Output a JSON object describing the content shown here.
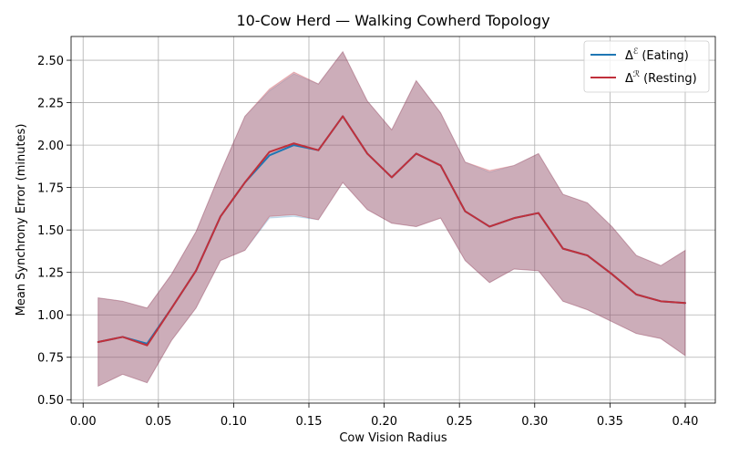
{
  "chart_data": {
    "type": "line",
    "title": "10-Cow Herd — Walking Cowherd Topology",
    "xlabel": "Cow Vision Radius",
    "ylabel": "Mean Synchrony Error (minutes)",
    "xlim": [
      -0.008,
      0.42
    ],
    "ylim": [
      0.48,
      2.64
    ],
    "grid": true,
    "legend_position": "top-right",
    "x_ticks": [
      {
        "value": 0.0,
        "label": "0.00"
      },
      {
        "value": 0.05,
        "label": "0.05"
      },
      {
        "value": 0.1,
        "label": "0.10"
      },
      {
        "value": 0.15,
        "label": "0.15"
      },
      {
        "value": 0.2,
        "label": "0.20"
      },
      {
        "value": 0.25,
        "label": "0.25"
      },
      {
        "value": 0.3,
        "label": "0.30"
      },
      {
        "value": 0.35,
        "label": "0.35"
      },
      {
        "value": 0.4,
        "label": "0.40"
      }
    ],
    "y_ticks": [
      {
        "value": 0.5,
        "label": "0.50"
      },
      {
        "value": 0.75,
        "label": "0.75"
      },
      {
        "value": 1.0,
        "label": "1.00"
      },
      {
        "value": 1.25,
        "label": "1.25"
      },
      {
        "value": 1.5,
        "label": "1.50"
      },
      {
        "value": 1.75,
        "label": "1.75"
      },
      {
        "value": 2.0,
        "label": "2.00"
      },
      {
        "value": 2.25,
        "label": "2.25"
      },
      {
        "value": 2.5,
        "label": "2.50"
      }
    ],
    "x": [
      0.01,
      0.0263,
      0.0425,
      0.0588,
      0.075,
      0.0913,
      0.1075,
      0.1238,
      0.14,
      0.1563,
      0.1725,
      0.1888,
      0.205,
      0.2213,
      0.2375,
      0.2538,
      0.27,
      0.2863,
      0.3025,
      0.3188,
      0.335,
      0.3513,
      0.3675,
      0.3838,
      0.4
    ],
    "series": [
      {
        "symbol": "Δ",
        "superscript": "ℰ",
        "label": "(Eating)",
        "color": "#1f77b4",
        "values": [
          0.84,
          0.87,
          0.83,
          1.04,
          1.26,
          1.58,
          1.78,
          1.94,
          2.0,
          1.97,
          2.17,
          1.95,
          1.81,
          1.95,
          1.88,
          1.61,
          1.52,
          1.57,
          1.6,
          1.39,
          1.35,
          1.24,
          1.12,
          1.08,
          1.07
        ],
        "upper": [
          1.1,
          1.08,
          1.04,
          1.24,
          1.49,
          1.84,
          2.17,
          2.32,
          2.42,
          2.36,
          2.55,
          2.26,
          2.09,
          2.38,
          2.19,
          1.9,
          1.84,
          1.88,
          1.95,
          1.71,
          1.66,
          1.52,
          1.35,
          1.29,
          1.38
        ],
        "lower": [
          0.58,
          0.65,
          0.6,
          0.85,
          1.04,
          1.32,
          1.38,
          1.57,
          1.58,
          1.56,
          1.78,
          1.62,
          1.54,
          1.52,
          1.57,
          1.32,
          1.19,
          1.27,
          1.26,
          1.08,
          1.03,
          0.96,
          0.89,
          0.86,
          0.76
        ]
      },
      {
        "symbol": "Δ",
        "superscript": "ℛ",
        "label": "(Resting)",
        "color": "#c0303b",
        "values": [
          0.84,
          0.87,
          0.82,
          1.04,
          1.26,
          1.58,
          1.78,
          1.96,
          2.01,
          1.97,
          2.17,
          1.95,
          1.81,
          1.95,
          1.88,
          1.61,
          1.52,
          1.57,
          1.6,
          1.39,
          1.35,
          1.24,
          1.12,
          1.08,
          1.07
        ],
        "upper": [
          1.1,
          1.08,
          1.04,
          1.24,
          1.49,
          1.84,
          2.17,
          2.33,
          2.43,
          2.36,
          2.55,
          2.26,
          2.09,
          2.38,
          2.19,
          1.9,
          1.85,
          1.88,
          1.95,
          1.71,
          1.66,
          1.52,
          1.35,
          1.29,
          1.38
        ],
        "lower": [
          0.58,
          0.65,
          0.6,
          0.85,
          1.04,
          1.32,
          1.38,
          1.58,
          1.59,
          1.56,
          1.78,
          1.62,
          1.54,
          1.52,
          1.57,
          1.32,
          1.19,
          1.27,
          1.26,
          1.08,
          1.03,
          0.96,
          0.89,
          0.86,
          0.76
        ]
      }
    ]
  }
}
